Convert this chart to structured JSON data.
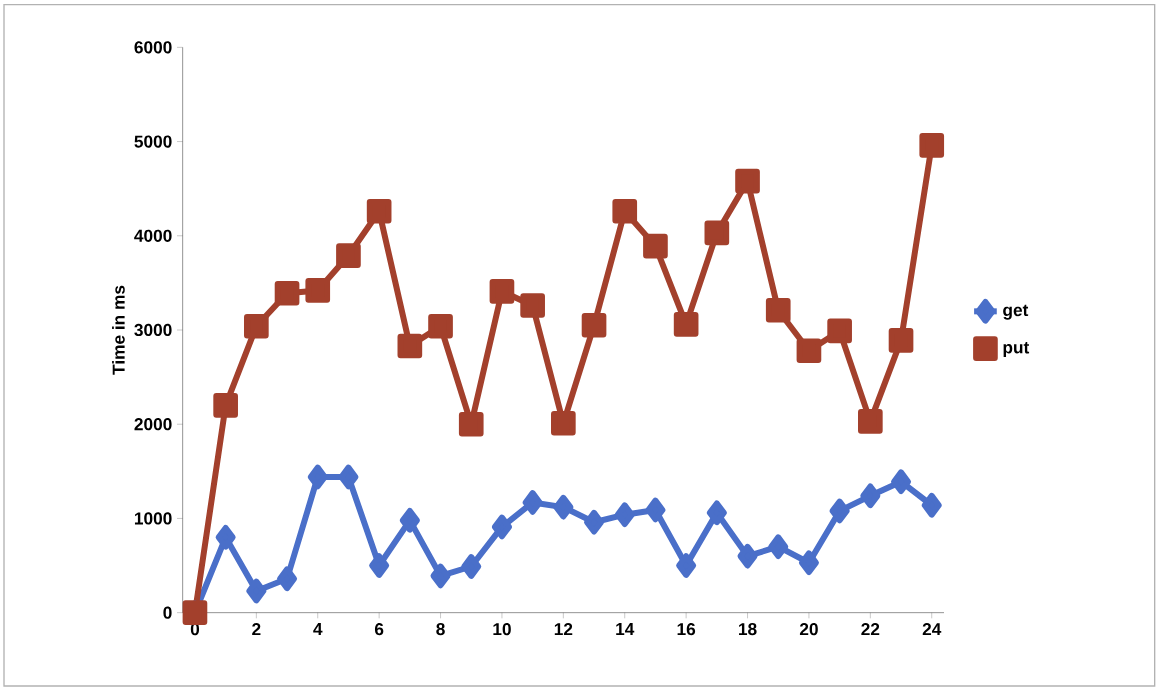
{
  "chart_data": {
    "type": "line",
    "ylabel": "Time in ms",
    "x": [
      0,
      1,
      2,
      3,
      4,
      5,
      6,
      7,
      8,
      9,
      10,
      11,
      12,
      13,
      14,
      15,
      16,
      17,
      18,
      19,
      20,
      21,
      22,
      23,
      24
    ],
    "series": [
      {
        "name": "get",
        "color": "#4a6fc9",
        "marker": "diamond",
        "values": [
          0,
          800,
          230,
          360,
          1440,
          1440,
          500,
          980,
          390,
          490,
          910,
          1170,
          1120,
          960,
          1040,
          1090,
          500,
          1060,
          600,
          700,
          530,
          1080,
          1240,
          1390,
          1140
        ]
      },
      {
        "name": "put",
        "color": "#a3402c",
        "marker": "square",
        "values": [
          0,
          2200,
          3040,
          3390,
          3420,
          3790,
          4260,
          2830,
          3040,
          2000,
          3410,
          3260,
          2010,
          3050,
          4260,
          3890,
          3060,
          4030,
          4580,
          3210,
          2780,
          2990,
          2030,
          2890,
          4960
        ]
      }
    ],
    "xlim": [
      -0.4,
      24.4
    ],
    "ylim": [
      0,
      6000
    ],
    "xticks": [
      0,
      2,
      4,
      6,
      8,
      10,
      12,
      14,
      16,
      18,
      20,
      22,
      24
    ],
    "yticks": [
      0,
      1000,
      2000,
      3000,
      4000,
      5000,
      6000
    ],
    "grid": false,
    "legend": "right",
    "line_style": "solid"
  }
}
